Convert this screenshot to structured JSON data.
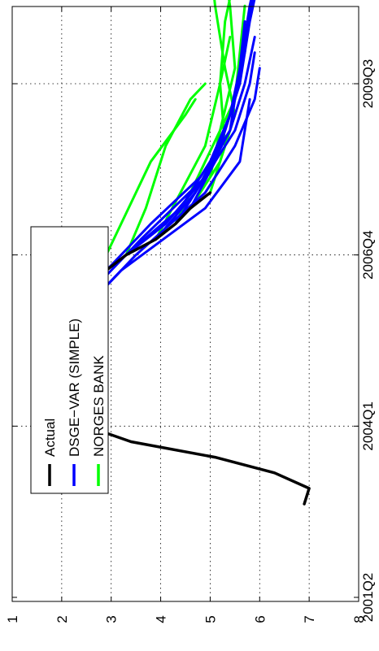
{
  "chart_data": {
    "type": "line",
    "orientation": "rotated-90-ccw",
    "x_ticks": [
      "2001Q2",
      "2004Q1",
      "2006Q4",
      "2009Q3"
    ],
    "y_ticks": [
      "1",
      "2",
      "3",
      "4",
      "5",
      "6",
      "7",
      "8"
    ],
    "ylim": [
      1,
      8
    ],
    "grid": true,
    "legend": {
      "placement": "top-left",
      "entries": [
        {
          "label": "Actual",
          "color": "#000000"
        },
        {
          "label": "DSGE−VAR (SIMPLE)",
          "color": "#0000ff"
        },
        {
          "label": "NORGES BANK",
          "color": "#00ff00"
        }
      ]
    },
    "series": [
      {
        "name": "Actual",
        "color": "#000000",
        "points": [
          [
            "2002Q4",
            6.9
          ],
          [
            "2003Q1",
            7.0
          ],
          [
            "2003Q2",
            6.3
          ],
          [
            "2003Q3",
            5.1
          ],
          [
            "2003Q4",
            3.4
          ],
          [
            "2004Q1",
            2.5
          ],
          [
            "2004Q2",
            2.0
          ],
          [
            "2004Q3",
            1.8
          ],
          [
            "2004Q4",
            1.8
          ],
          [
            "2005Q1",
            1.8
          ],
          [
            "2005Q2",
            1.8
          ],
          [
            "2005Q3",
            2.0
          ],
          [
            "2005Q4",
            2.3
          ],
          [
            "2006Q1",
            2.4
          ],
          [
            "2006Q2",
            2.6
          ],
          [
            "2006Q3",
            2.9
          ],
          [
            "2006Q4",
            3.3
          ],
          [
            "2007Q1",
            3.9
          ],
          [
            "2007Q2",
            4.3
          ],
          [
            "2007Q3",
            4.6
          ],
          [
            "2007Q4",
            5.0
          ]
        ]
      }
    ],
    "forecast_groups": [
      {
        "name": "DSGE−VAR (SIMPLE)",
        "color": "#0000ff",
        "paths": [
          [
            [
              "2005Q3",
              2.0
            ],
            [
              "2006Q3",
              3.2
            ],
            [
              "2007Q3",
              4.9
            ],
            [
              "2008Q2",
              5.6
            ],
            [
              "2008Q4",
              5.7
            ],
            [
              "2009Q2",
              5.8
            ]
          ],
          [
            [
              "2005Q4",
              2.3
            ],
            [
              "2006Q4",
              3.5
            ],
            [
              "2007Q4",
              4.9
            ],
            [
              "2008Q3",
              5.5
            ],
            [
              "2009Q2",
              5.9
            ],
            [
              "2009Q4",
              6.0
            ]
          ],
          [
            [
              "2006Q1",
              2.4
            ],
            [
              "2007Q1",
              3.6
            ],
            [
              "2008Q1",
              4.9
            ],
            [
              "2008Q4",
              5.5
            ],
            [
              "2009Q3",
              5.8
            ],
            [
              "2010Q1",
              5.9
            ]
          ],
          [
            [
              "2006Q2",
              2.6
            ],
            [
              "2007Q2",
              3.8
            ],
            [
              "2008Q1",
              4.8
            ],
            [
              "2008Q4",
              5.4
            ],
            [
              "2009Q3",
              5.7
            ],
            [
              "2010Q2",
              5.9
            ]
          ],
          [
            [
              "2006Q3",
              2.9
            ],
            [
              "2007Q2",
              4.1
            ],
            [
              "2008Q1",
              4.9
            ],
            [
              "2008Q4",
              5.4
            ],
            [
              "2009Q4",
              5.6
            ],
            [
              "2010Q3",
              5.7
            ]
          ],
          [
            [
              "2006Q4",
              3.3
            ],
            [
              "2007Q3",
              4.4
            ],
            [
              "2008Q2",
              5.0
            ],
            [
              "2009Q1",
              5.4
            ],
            [
              "2010Q1",
              5.7
            ],
            [
              "2010Q4",
              5.8
            ]
          ],
          [
            [
              "2007Q1",
              3.9
            ],
            [
              "2007Q4",
              4.7
            ],
            [
              "2008Q3",
              5.2
            ],
            [
              "2009Q2",
              5.5
            ],
            [
              "2010Q2",
              5.7
            ],
            [
              "2011Q1",
              5.9
            ]
          ],
          [
            [
              "2007Q2",
              4.3
            ],
            [
              "2008Q1",
              4.9
            ],
            [
              "2008Q4",
              5.3
            ],
            [
              "2009Q3",
              5.6
            ],
            [
              "2010Q3",
              5.8
            ],
            [
              "2011Q2",
              6.0
            ]
          ],
          [
            [
              "2007Q3",
              4.6
            ],
            [
              "2008Q2",
              5.1
            ],
            [
              "2009Q1",
              5.4
            ],
            [
              "2009Q4",
              5.6
            ],
            [
              "2010Q4",
              5.8
            ],
            [
              "2011Q3",
              6.0
            ]
          ]
        ]
      },
      {
        "name": "NORGES BANK",
        "color": "#00ff00",
        "paths": [
          [
            [
              "2006Q2",
              2.6
            ],
            [
              "2007Q2",
              3.2
            ],
            [
              "2008Q2",
              3.8
            ],
            [
              "2009Q1",
              4.5
            ],
            [
              "2009Q2",
              4.7
            ]
          ],
          [
            [
              "2006Q4",
              3.3
            ],
            [
              "2007Q3",
              3.7
            ],
            [
              "2008Q3",
              4.1
            ],
            [
              "2009Q2",
              4.6
            ],
            [
              "2009Q3",
              4.9
            ]
          ],
          [
            [
              "2007Q1",
              3.9
            ],
            [
              "2007Q4",
              4.4
            ],
            [
              "2008Q3",
              4.9
            ],
            [
              "2009Q3",
              5.2
            ],
            [
              "2010Q2",
              5.4
            ]
          ],
          [
            [
              "2007Q2",
              4.3
            ],
            [
              "2008Q2",
              4.9
            ],
            [
              "2009Q2",
              5.5
            ],
            [
              "2010Q1",
              5.6
            ],
            [
              "2010Q4",
              5.7
            ]
          ],
          [
            [
              "2007Q3",
              4.6
            ],
            [
              "2008Q2",
              5.2
            ],
            [
              "2009Q1",
              5.5
            ],
            [
              "2009Q4",
              5.3
            ],
            [
              "2010Q4",
              5.1
            ],
            [
              "2011Q3",
              5.0
            ]
          ],
          [
            [
              "2007Q4",
              5.0
            ],
            [
              "2008Q3",
              5.3
            ],
            [
              "2009Q3",
              5.2
            ],
            [
              "2010Q3",
              5.3
            ],
            [
              "2011Q2",
              5.5
            ]
          ],
          [
            [
              "2008Q1",
              5.0
            ],
            [
              "2008Q4",
              5.2
            ],
            [
              "2009Q4",
              5.5
            ],
            [
              "2010Q4",
              5.4
            ],
            [
              "2011Q4",
              5.2
            ]
          ]
        ]
      }
    ]
  }
}
